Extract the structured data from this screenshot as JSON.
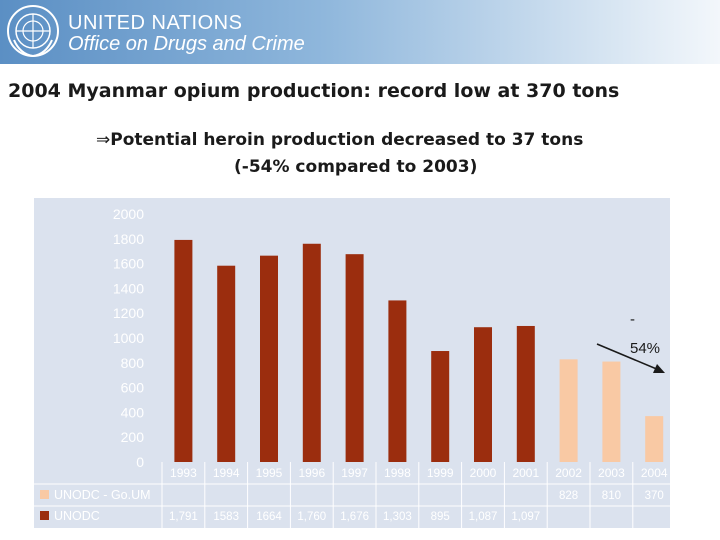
{
  "header": {
    "org_name": "UNITED NATIONS",
    "org_sub": "Office on Drugs and Crime",
    "logo_icon": "un-emblem-icon",
    "bg_color": "#5b8fc4"
  },
  "title": "2004 Myanmar opium production: record low at 370 tons",
  "subtitle": {
    "arrow": "⇒",
    "line1": "Potential heroin production decreased to  37 tons",
    "line2": "(-54% compared to 2003)"
  },
  "chart_data": {
    "type": "bar",
    "categories": [
      "1993",
      "1994",
      "1995",
      "1996",
      "1997",
      "1998",
      "1999",
      "2000",
      "2001",
      "2002",
      "2003",
      "2004"
    ],
    "series": [
      {
        "name": "UNODC",
        "color": "#9b2d0e",
        "values": [
          1791,
          1583,
          1664,
          1760,
          1676,
          1303,
          895,
          1087,
          1097,
          null,
          null,
          null
        ],
        "labels": [
          "1,791",
          "1583",
          "1664",
          "1,760",
          "1,676",
          "1,303",
          "895",
          "1,087",
          "1,097",
          "",
          "",
          ""
        ]
      },
      {
        "name": "UNODC - Go.UM",
        "color": "#f9c9a4",
        "values": [
          null,
          null,
          null,
          null,
          null,
          null,
          null,
          null,
          null,
          828,
          810,
          370
        ],
        "labels": [
          "",
          "",
          "",
          "",
          "",
          "",
          "",
          "",
          "",
          "828",
          "810",
          "370"
        ]
      }
    ],
    "yticks": [
      0,
      200,
      400,
      600,
      800,
      1000,
      1200,
      1400,
      1600,
      1800,
      2000
    ],
    "ylim": [
      0,
      2000
    ],
    "annotation": {
      "line1": "-",
      "line2": "54%"
    },
    "data_table": true
  }
}
